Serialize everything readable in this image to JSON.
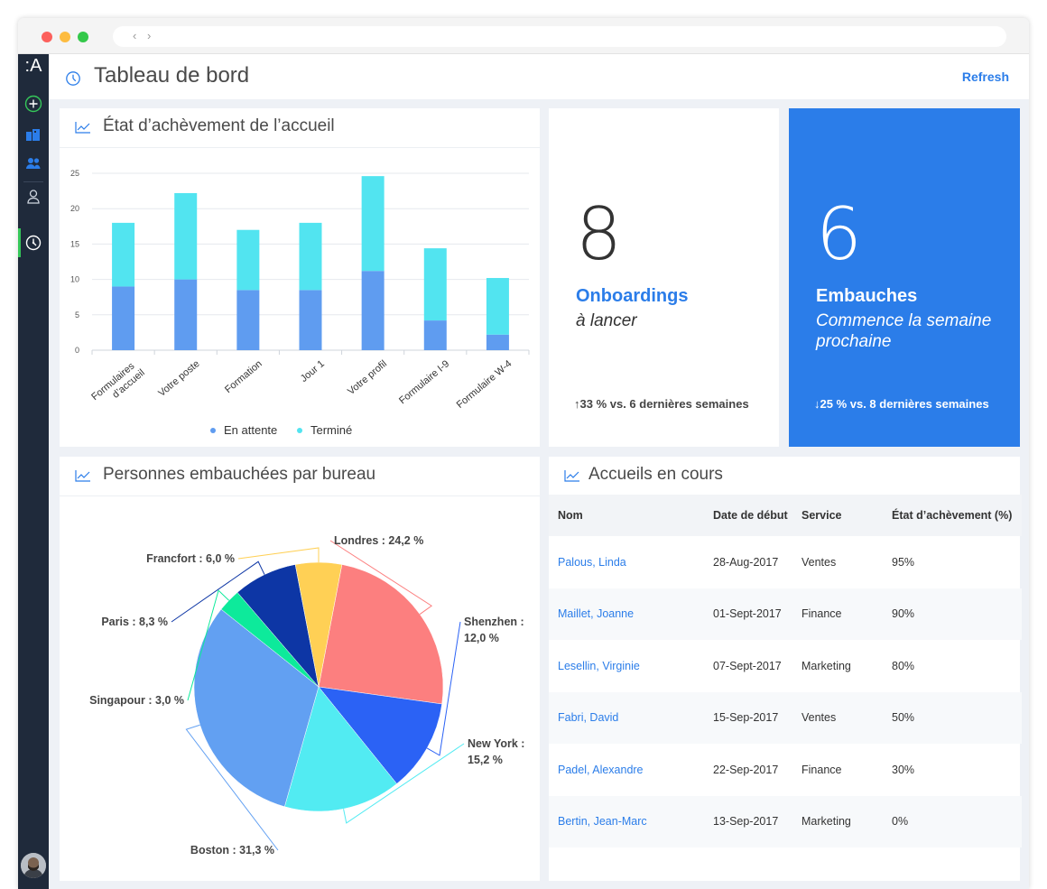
{
  "browser": {
    "nav": "‹ ›"
  },
  "sidebar": {
    "logo": ":A",
    "icons": [
      "add-icon",
      "buildings-icon",
      "people-icon",
      "user-icon",
      "dashboard-icon"
    ],
    "accent": "#35c759"
  },
  "header": {
    "title": "Tableau de bord",
    "refresh_label": "Refresh"
  },
  "bar_card": {
    "title": "État d’achèvement de l’accueil"
  },
  "kpi_onboardings": {
    "value": "8",
    "label": "Onboardings",
    "sub": "à lancer",
    "trend": "↑33 % vs. 6 dernières semaines"
  },
  "kpi_hires": {
    "value": "6",
    "label": "Embauches",
    "sub": "Commence la semaine prochaine",
    "trend": "↓25 % vs. 8 dernières semaines",
    "bg": "#2b7de9"
  },
  "pie_card": {
    "title": "Personnes embauchées par bureau"
  },
  "table_card": {
    "title": "Accueils en cours",
    "columns": [
      "Nom",
      "Date de début",
      "Service",
      "État d’achèvement (%)"
    ],
    "rows": [
      [
        "Palous, Linda",
        "28-Aug-2017",
        "Ventes",
        "95%"
      ],
      [
        "Maillet, Joanne",
        "01-Sept-2017",
        "Finance",
        "90%"
      ],
      [
        "Lesellin, Virginie",
        "07-Sept-2017",
        "Marketing",
        "80%"
      ],
      [
        "Fabri, David",
        "15-Sep-2017",
        "Ventes",
        "50%"
      ],
      [
        "Padel, Alexandre",
        "22-Sep-2017",
        "Finance",
        "30%"
      ],
      [
        "Bertin, Jean-Marc",
        "13-Sep-2017",
        "Marketing",
        "0%"
      ]
    ]
  },
  "chart_data": [
    {
      "type": "bar",
      "stacked": true,
      "title": "État d’achèvement de l’accueil",
      "categories": [
        "Formulaires d’accueil",
        "Votre poste",
        "Formation",
        "Jour 1",
        "Votre profil",
        "Formulaire I-9",
        "Formulaire W-4"
      ],
      "series": [
        {
          "name": "En attente",
          "values": [
            9,
            10,
            8.5,
            8.5,
            11.2,
            4.2,
            2.2
          ],
          "color": "#5f9cf0"
        },
        {
          "name": "Terminé",
          "values": [
            9,
            12.2,
            8.5,
            9.5,
            13.4,
            10.2,
            8
          ],
          "color": "#52e4f0"
        }
      ],
      "ylim": [
        0,
        25
      ],
      "yticks": [
        "0",
        "5",
        "10",
        "15",
        "20",
        "25"
      ],
      "grid": true,
      "legend": "bottom"
    },
    {
      "type": "pie",
      "title": "Personnes embauchées par bureau",
      "slices": [
        {
          "label": "Londres : 24,2 %",
          "value": 24.2,
          "color": "#fc7f7f"
        },
        {
          "label": "Shenzhen : 12,0 %",
          "value": 12.0,
          "color": "#2b62f5"
        },
        {
          "label": "New York : 15,2 %",
          "value": 15.2,
          "color": "#52ebf2"
        },
        {
          "label": "Boston : 31,3 %",
          "value": 31.3,
          "color": "#62a0f2"
        },
        {
          "label": "Singapour : 3,0 %",
          "value": 3.0,
          "color": "#0dea9b"
        },
        {
          "label": "Paris : 8,3 %",
          "value": 8.3,
          "color": "#0d36a5"
        },
        {
          "label": "Francfort : 6,0 %",
          "value": 6.0,
          "color": "#ffd055"
        }
      ]
    }
  ]
}
